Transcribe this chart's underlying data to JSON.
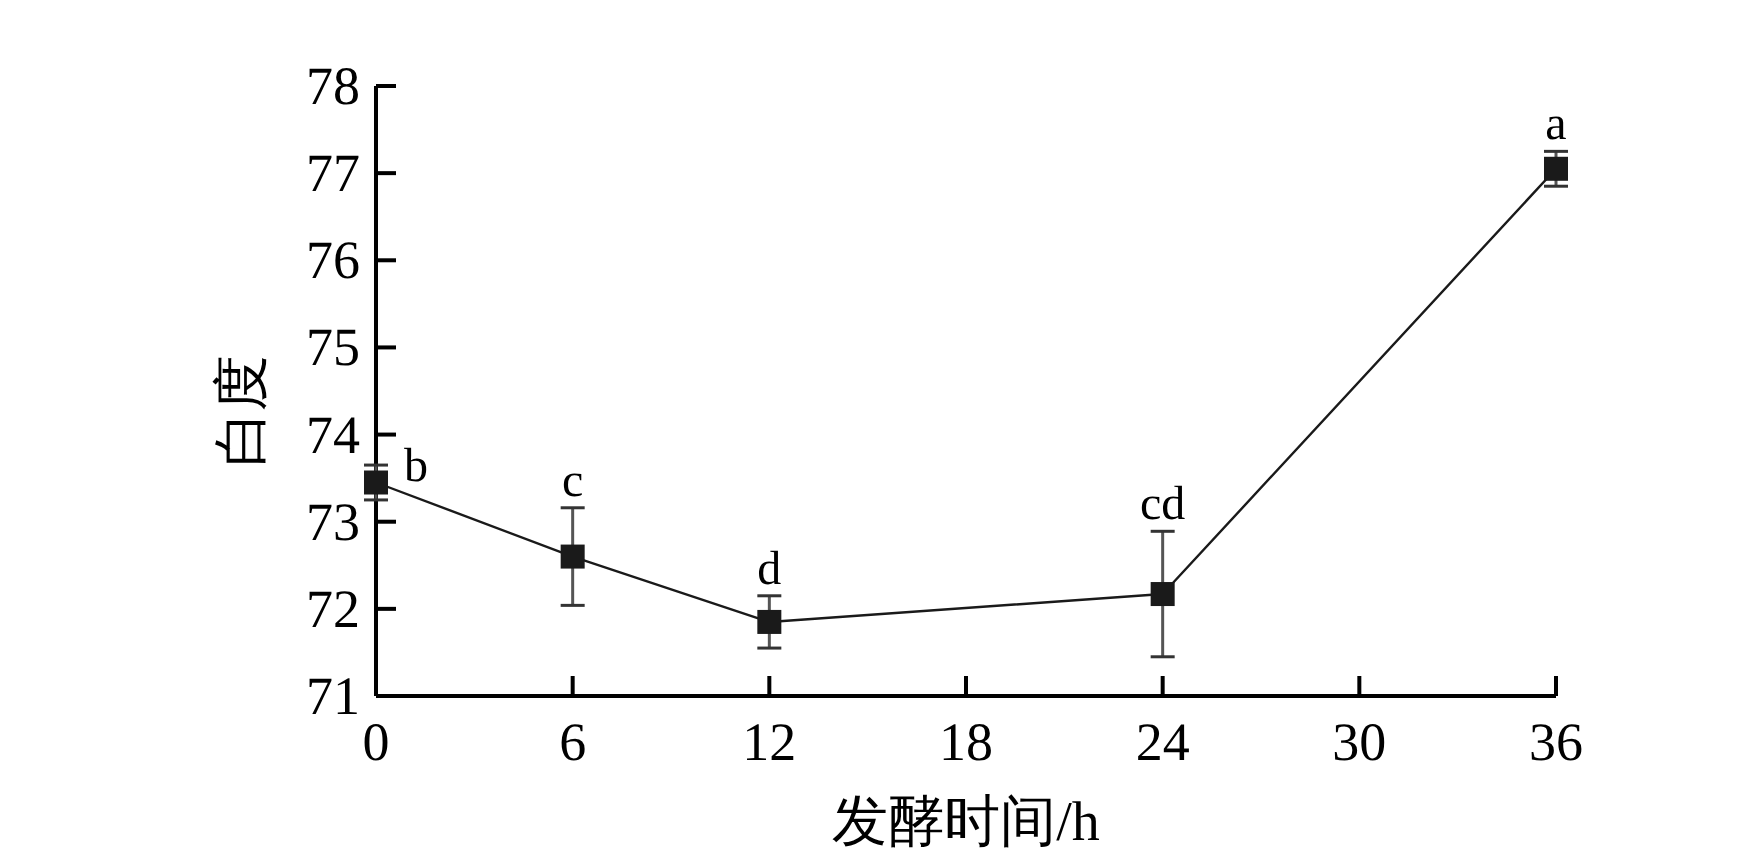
{
  "chart_data": {
    "type": "line",
    "xlabel": "发酵时间/h",
    "ylabel": "白度",
    "x": [
      0,
      6,
      12,
      24,
      36
    ],
    "series": [
      {
        "color": "#1a1a1a",
        "values": [
          73.45,
          72.6,
          71.85,
          72.17,
          77.05
        ],
        "errors": [
          0.2,
          0.56,
          0.3,
          0.72,
          0.2
        ]
      }
    ],
    "xlim": [
      0,
      36
    ],
    "ylim": [
      71,
      78
    ],
    "xticks": [
      0,
      6,
      12,
      18,
      24,
      30,
      36
    ],
    "yticks": [
      71,
      72,
      73,
      74,
      75,
      76,
      77,
      78
    ],
    "marker": "square",
    "line_style": "solid",
    "grid": false,
    "annotations": [
      {
        "text": "b",
        "x": 0,
        "y": 73.45
      },
      {
        "text": "c",
        "x": 6,
        "y": 72.6
      },
      {
        "text": "d",
        "x": 12,
        "y": 71.85
      },
      {
        "text": "cd",
        "x": 24,
        "y": 72.17
      },
      {
        "text": "a",
        "x": 36,
        "y": 77.05
      }
    ]
  }
}
